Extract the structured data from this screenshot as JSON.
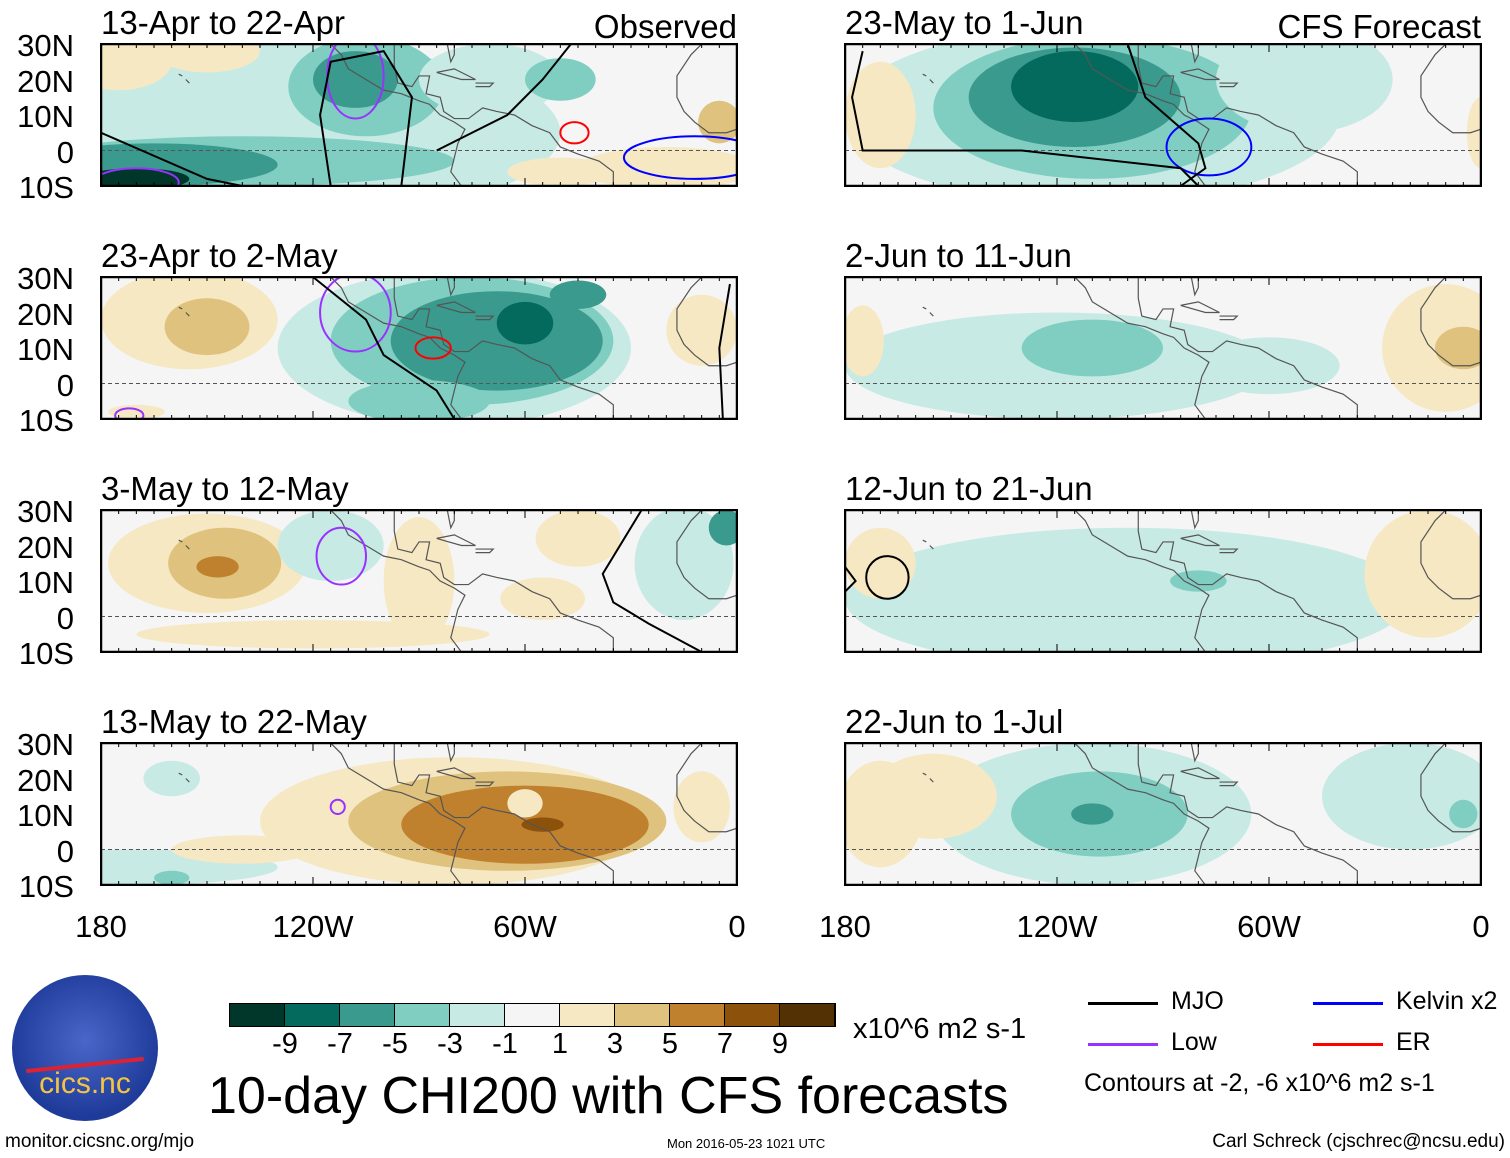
{
  "panels_left": [
    {
      "title": "13-Apr to 22-Apr",
      "tag": "Observed"
    },
    {
      "title": "23-Apr to 2-May"
    },
    {
      "title": "3-May to 12-May"
    },
    {
      "title": "13-May to 22-May"
    }
  ],
  "panels_right": [
    {
      "title": "23-May to 1-Jun",
      "tag": "CFS Forecast"
    },
    {
      "title": "2-Jun to 11-Jun"
    },
    {
      "title": "12-Jun to 21-Jun"
    },
    {
      "title": "22-Jun to 1-Jul"
    }
  ],
  "chart_data": {
    "type": "heatmap",
    "title": "10-day CHI200 with CFS forecasts",
    "ylabel_ticks": [
      "30N",
      "20N",
      "10N",
      "0",
      "10S"
    ],
    "xlabel_ticks": [
      "180",
      "120W",
      "60W",
      "0"
    ],
    "colorbar": {
      "ticks": [
        "-9",
        "-7",
        "-5",
        "-3",
        "-1",
        "1",
        "3",
        "5",
        "7",
        "9"
      ],
      "units": "x10^6 m2 s-1",
      "colors": [
        "#01362b",
        "#046a5e",
        "#3a9a8e",
        "#80cdc1",
        "#c7eae5",
        "#f5f5f5",
        "#f6e8c3",
        "#dfc27d",
        "#bf812d",
        "#8c510a",
        "#543005"
      ]
    },
    "legend": [
      {
        "label": "MJO",
        "color": "#000000"
      },
      {
        "label": "Kelvin x2",
        "color": "#0000ff"
      },
      {
        "label": "Low",
        "color": "#9932ff"
      },
      {
        "label": "ER",
        "color": "#ff0000"
      }
    ],
    "contour_note": "Contours at -2, -6 x10^6 m2 s-1"
  },
  "footer": {
    "url": "monitor.cicsnc.org/mjo",
    "timestamp": "Mon 2016-05-23 1021 UTC",
    "author": "Carl Schreck (cjschrec@ncsu.edu)",
    "logo_text": "cics.nc"
  }
}
